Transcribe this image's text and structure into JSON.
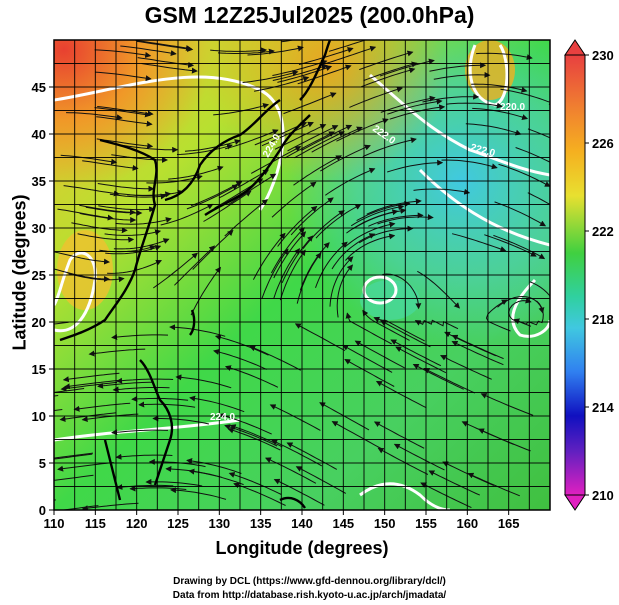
{
  "title": "GSM 12Z25Jul2025 (200.0hPa)",
  "axes": {
    "xlabel": "Longitude (degrees)",
    "ylabel": "Latitude  (degrees)",
    "xticks": [
      "110",
      "115",
      "120",
      "125",
      "130",
      "135",
      "140",
      "145",
      "150",
      "155",
      "160",
      "165"
    ],
    "yticks": [
      "0",
      "5",
      "10",
      "15",
      "20",
      "25",
      "30",
      "35",
      "40",
      "45"
    ],
    "xrange": [
      110,
      170
    ],
    "yrange": [
      0,
      50
    ]
  },
  "colorbar": {
    "labels": [
      "230",
      "226",
      "222",
      "218",
      "214",
      "210"
    ],
    "range": [
      210,
      230
    ],
    "colors": {
      "top": "#e8403a",
      "orange": "#f5a623",
      "yellow": "#f0e030",
      "green": "#30d030",
      "cyan": "#40c8e0",
      "blue": "#3060e8",
      "deep_blue": "#1010b0",
      "bottom": "#e020c0"
    }
  },
  "contour_labels": [
    "224.0",
    "222.0",
    "222.0",
    "224.0",
    "220.0"
  ],
  "credits": [
    "Drawing by DCL (https://www.gfd-dennou.org/library/dcl/)",
    "Data from http://database.rish.kyoto-u.ac.jp/arch/jmadata/"
  ]
}
